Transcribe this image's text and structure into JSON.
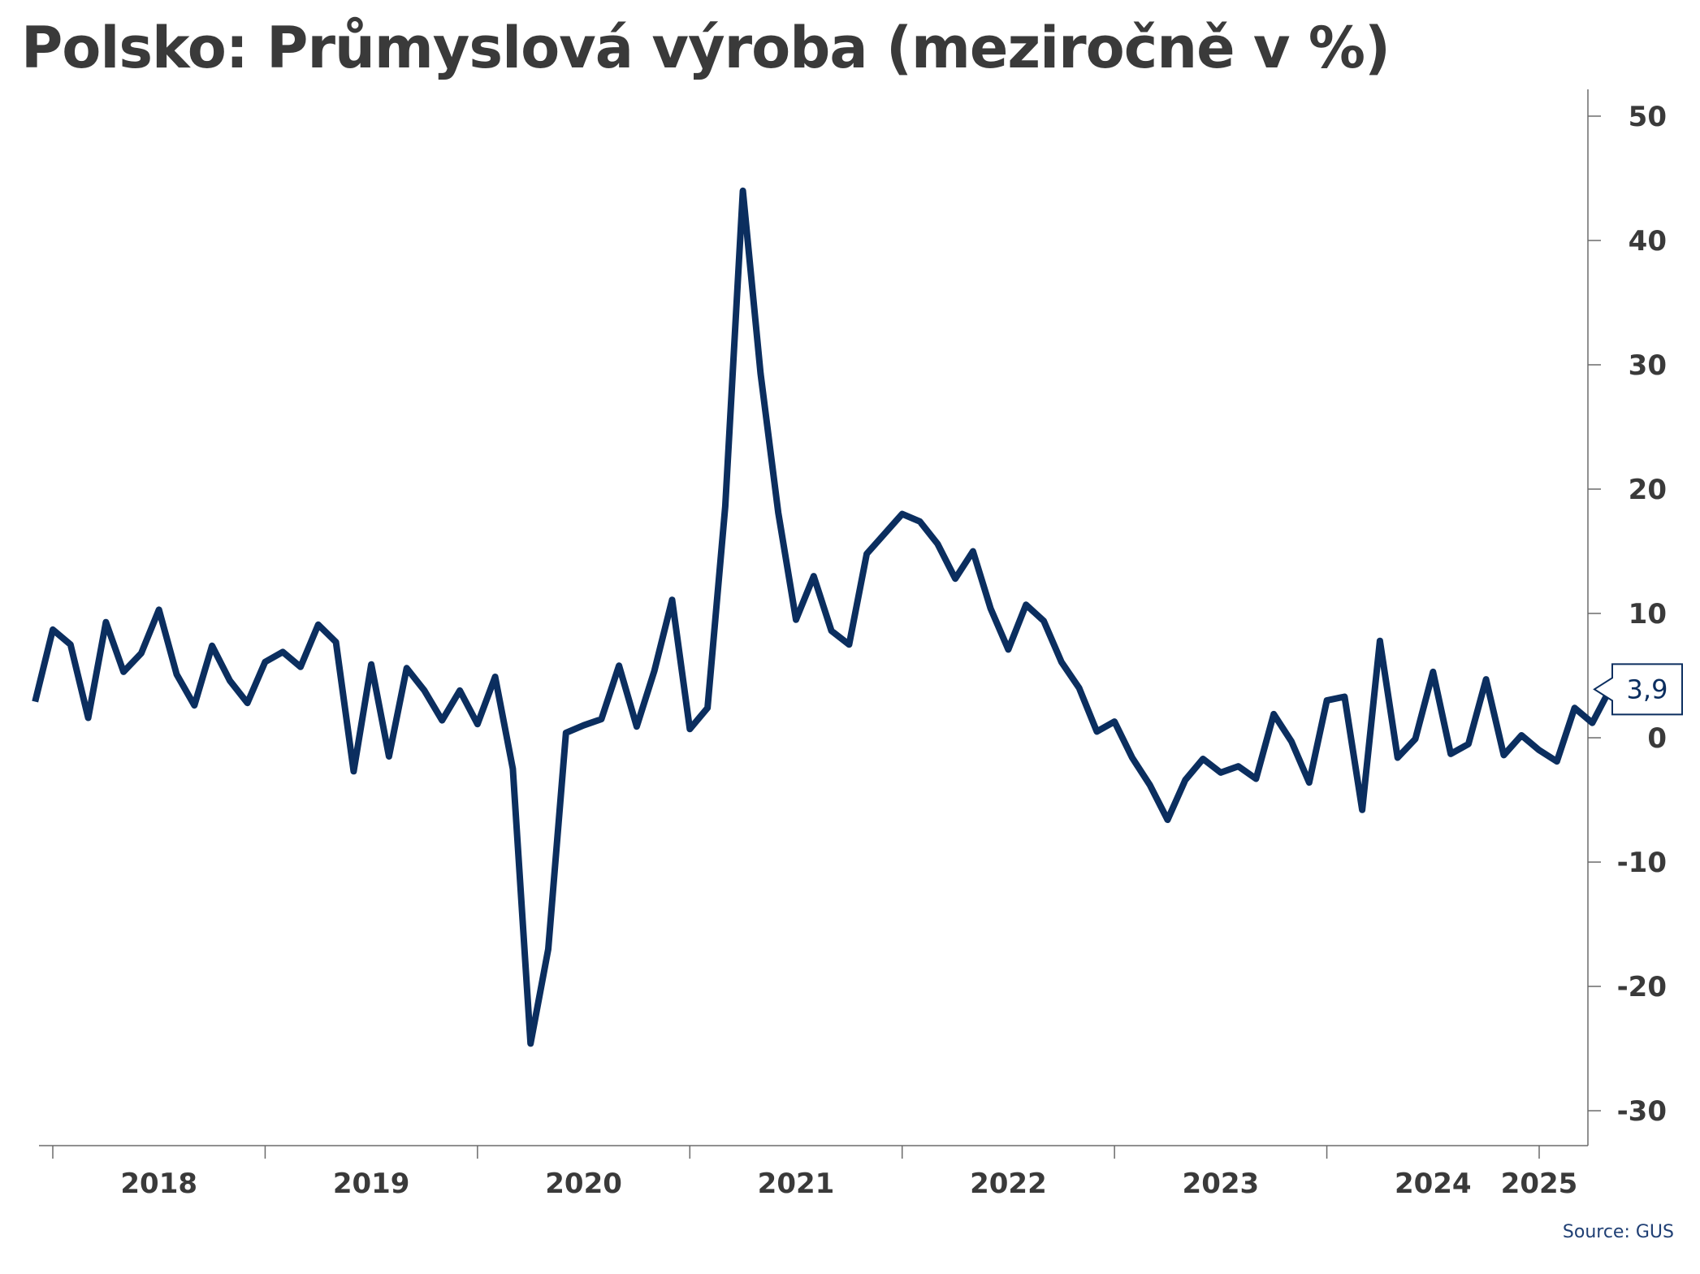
{
  "title": "Polsko: Průmyslová výroba (meziročně v %)",
  "source": "Source: GUS",
  "colors": {
    "line": "#0b2e5f",
    "text": "#3a3a3a",
    "axis": "#6b6b6b",
    "source": "#1f3f74"
  },
  "chart_data": {
    "type": "line",
    "title": "Polsko: Průmyslová výroba (meziročně v %)",
    "xlabel": "",
    "ylabel": "",
    "x_start": "2017-12",
    "x_ticks": [
      "2018",
      "2019",
      "2020",
      "2021",
      "2022",
      "2023",
      "2024",
      "2025"
    ],
    "y_ticks": [
      "50",
      "40",
      "30",
      "20",
      "10",
      "0",
      "-10",
      "-20",
      "-30"
    ],
    "ylim": [
      -31.5,
      51.5
    ],
    "grid": false,
    "legend": "none",
    "last_value_label": "3,9",
    "series": [
      {
        "name": "",
        "values": [
          2.9,
          8.7,
          7.5,
          1.6,
          9.3,
          5.3,
          6.8,
          10.3,
          5.1,
          2.6,
          7.4,
          4.6,
          2.8,
          6.1,
          6.9,
          5.7,
          9.1,
          7.7,
          -2.7,
          5.9,
          -1.5,
          5.6,
          3.8,
          1.4,
          3.8,
          1.1,
          4.9,
          -2.5,
          -24.6,
          -17.0,
          0.4,
          1.0,
          1.5,
          5.8,
          0.9,
          5.4,
          11.1,
          0.7,
          2.4,
          18.6,
          44.0,
          29.3,
          18.1,
          9.5,
          13.0,
          8.6,
          7.5,
          14.8,
          16.4,
          18.0,
          17.4,
          15.6,
          12.8,
          15.0,
          10.4,
          7.1,
          10.7,
          9.4,
          6.1,
          4.0,
          0.5,
          1.3,
          -1.6,
          -3.8,
          -6.6,
          -3.4,
          -1.7,
          -2.8,
          -2.3,
          -3.3,
          1.9,
          -0.3,
          -3.6,
          3.0,
          3.3,
          -5.8,
          7.8,
          -1.6,
          -0.1,
          5.3,
          -1.3,
          -0.5,
          4.7,
          -1.4,
          0.2,
          -1.0,
          -1.9,
          2.4,
          1.2,
          3.9
        ]
      }
    ]
  }
}
